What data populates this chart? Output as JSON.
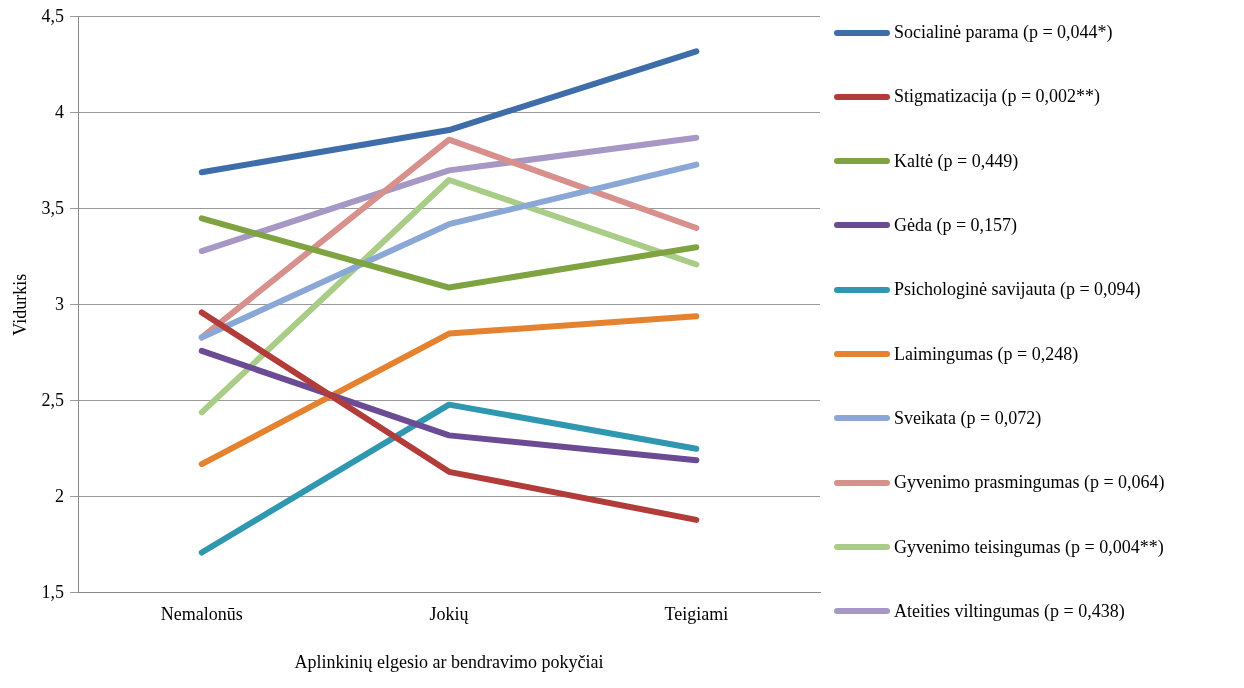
{
  "chart_data": {
    "type": "line",
    "xlabel": "Aplinkinių elgesio ar bendravimo pokyčiai",
    "ylabel": "Vidurkis",
    "categories": [
      "Nemalonūs",
      "Jokių",
      "Teigiami"
    ],
    "ylim": [
      1.5,
      4.5
    ],
    "yticks": [
      {
        "value": 1.5,
        "label": "1,5"
      },
      2,
      {
        "value": 2.5,
        "label": "2,5"
      },
      3,
      {
        "value": 3.5,
        "label": "3,5"
      },
      4,
      {
        "value": 4.5,
        "label": "4,5"
      }
    ],
    "grid": "y",
    "legend": "right",
    "marker": "none",
    "line_style": "solid",
    "series": [
      {
        "name": "Socialinė parama (p = 0,044*)",
        "color": "#3e6da9",
        "values": [
          3.69,
          3.91,
          4.32
        ]
      },
      {
        "name": "Stigmatizacija (p = 0,002**)",
        "color": "#b23c3a",
        "values": [
          2.96,
          2.13,
          1.88
        ]
      },
      {
        "name": "Kaltė (p = 0,449)",
        "color": "#7fa341",
        "values": [
          3.45,
          3.09,
          3.3
        ]
      },
      {
        "name": "Gėda (p = 0,157)",
        "color": "#6a4b94",
        "values": [
          2.76,
          2.32,
          2.19
        ]
      },
      {
        "name": "Psichologinė savijauta (p = 0,094)",
        "color": "#2f98b0",
        "values": [
          1.71,
          2.48,
          2.25
        ]
      },
      {
        "name": "Laimingumas (p = 0,248)",
        "color": "#e5822f",
        "values": [
          2.17,
          2.85,
          2.94
        ]
      },
      {
        "name": "Sveikata (p = 0,072)",
        "color": "#8aa7d6",
        "values": [
          2.83,
          3.42,
          3.73
        ]
      },
      {
        "name": "Gyvenimo prasmingumas (p = 0,064)",
        "color": "#d8908d",
        "values": [
          2.83,
          3.86,
          3.4
        ]
      },
      {
        "name": "Gyvenimo teisingumas (p = 0,004**)",
        "color": "#a9cd87",
        "values": [
          2.44,
          3.65,
          3.21
        ]
      },
      {
        "name": "Ateities viltingumas (p = 0,438)",
        "color": "#a797c5",
        "values": [
          3.28,
          3.7,
          3.87
        ]
      }
    ]
  }
}
